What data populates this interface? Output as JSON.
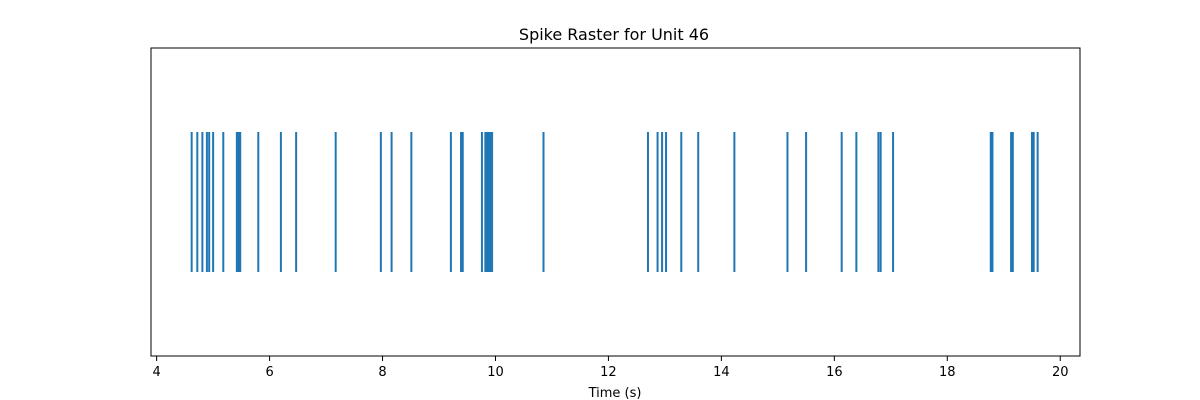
{
  "chart_data": {
    "type": "scatter",
    "title": "Spike Raster for Unit 46",
    "xlabel": "Time (s)",
    "ylabel": "",
    "xlim": [
      3.9,
      20.35
    ],
    "xticks": [
      4,
      6,
      8,
      10,
      12,
      14,
      16,
      18,
      20
    ],
    "xtick_labels": [
      "4",
      "6",
      "8",
      "10",
      "12",
      "14",
      "16",
      "18",
      "20"
    ],
    "grid": false,
    "legend": "none",
    "series": [
      {
        "values": [
          4.62,
          4.72,
          4.81,
          4.89,
          4.93,
          5.0,
          5.18,
          5.42,
          5.45,
          5.48,
          5.8,
          6.2,
          6.47,
          7.17,
          7.97,
          8.16,
          8.51,
          9.21,
          9.39,
          9.42,
          9.76,
          9.82,
          9.85,
          9.88,
          9.91,
          9.94,
          10.85,
          12.7,
          12.87,
          12.95,
          13.02,
          13.29,
          13.59,
          14.23,
          15.17,
          15.5,
          16.13,
          16.39,
          16.78,
          16.82,
          17.04,
          18.77,
          18.8,
          19.13,
          19.16,
          19.5,
          19.53,
          19.6
        ],
        "color": "#1f77b4"
      }
    ]
  }
}
